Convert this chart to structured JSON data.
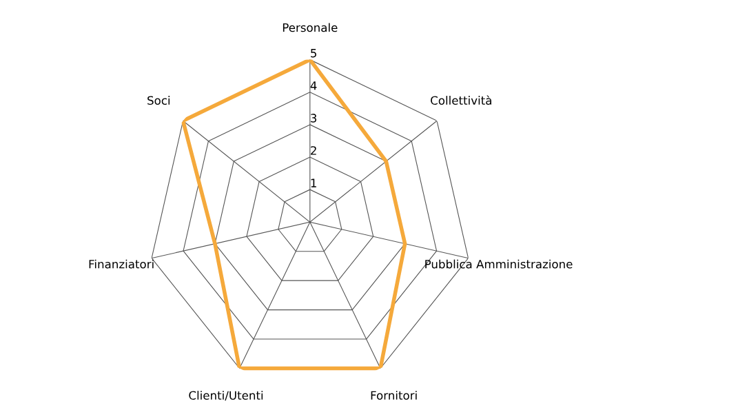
{
  "chart_data": {
    "type": "radar",
    "categories": [
      "Personale",
      "Collettività",
      "Pubblica Amministrazione",
      "Fornitori",
      "Clienti/Utenti",
      "Finanziatori",
      "Soci"
    ],
    "series": [
      {
        "color": "#f5a93b",
        "values": [
          5,
          3,
          3,
          5,
          5,
          3,
          5
        ]
      }
    ],
    "ylim": [
      0,
      5
    ],
    "yticks": [
      1,
      2,
      3,
      4,
      5
    ],
    "grid": true
  }
}
